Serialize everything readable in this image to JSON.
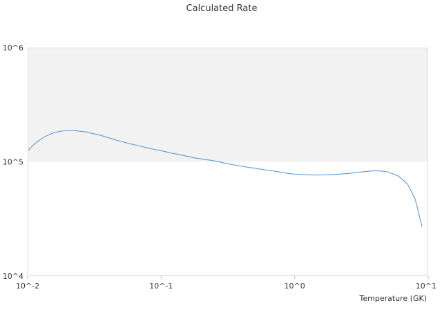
{
  "chart_data": {
    "type": "line",
    "title": "Calculated Rate",
    "xlabel": "Temperature (GK)",
    "ylabel": "",
    "x_scale": "log",
    "y_scale": "log",
    "xlim": [
      0.01,
      10
    ],
    "ylim": [
      10000,
      1000000
    ],
    "x_ticks": [
      {
        "value": 0.01,
        "label": "10^-2"
      },
      {
        "value": 0.1,
        "label": "10^-1"
      },
      {
        "value": 1,
        "label": "10^0"
      },
      {
        "value": 10,
        "label": "10^1"
      }
    ],
    "y_ticks": [
      {
        "value": 10000,
        "label": "10^4"
      },
      {
        "value": 100000,
        "label": "10^5"
      },
      {
        "value": 1000000,
        "label": "10^6"
      }
    ],
    "shaded_band": {
      "y_from": 100000,
      "y_to": 1000000,
      "color": "#f2f2f2"
    },
    "grid": false,
    "legend": "none",
    "series": [
      {
        "color": "#5b9bd5",
        "x": [
          0.01,
          0.011,
          0.012,
          0.013,
          0.014,
          0.015,
          0.016,
          0.018,
          0.02,
          0.022,
          0.025,
          0.028,
          0.03,
          0.035,
          0.04,
          0.045,
          0.05,
          0.06,
          0.07,
          0.08,
          0.09,
          0.1,
          0.11,
          0.12,
          0.13,
          0.15,
          0.18,
          0.2,
          0.25,
          0.3,
          0.35,
          0.4,
          0.45,
          0.5,
          0.6,
          0.7,
          0.8,
          0.9,
          1.0,
          1.25,
          1.5,
          1.75,
          2.0,
          2.5,
          3.0,
          3.5,
          4.0,
          4.5,
          5.0,
          6.0,
          7.0,
          8.0,
          9.0
        ],
        "y": [
          124000,
          140000,
          152000,
          162000,
          170000,
          176000,
          181000,
          186000,
          188000,
          188000,
          185000,
          182000,
          178000,
          171000,
          163000,
          156000,
          151000,
          143000,
          137000,
          132000,
          128000,
          125000,
          122000,
          119000,
          117000,
          113000,
          108000,
          106000,
          102000,
          97500,
          94000,
          91500,
          89500,
          88000,
          85000,
          83000,
          81000,
          79000,
          78000,
          77000,
          76500,
          77000,
          77500,
          79000,
          81000,
          82500,
          83500,
          83000,
          81500,
          75000,
          64000,
          47000,
          27000
        ]
      }
    ]
  }
}
